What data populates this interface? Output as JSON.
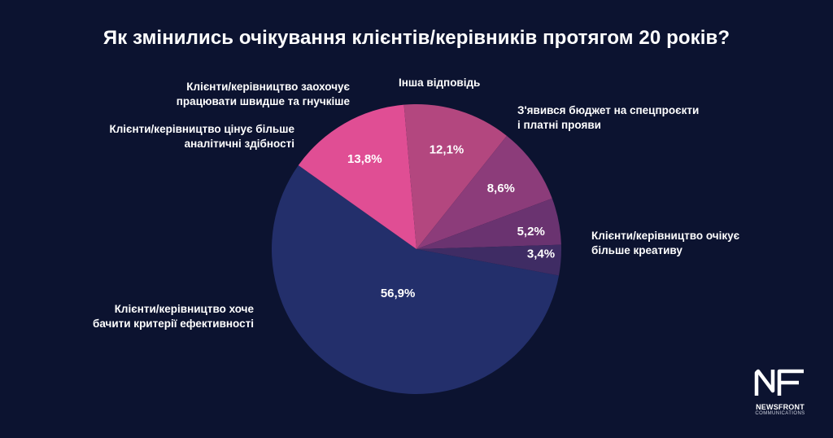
{
  "chart_data": {
    "type": "pie",
    "title": "Як змінились очікування клієнтів/керівників протягом 20 років?",
    "slices": [
      {
        "label": [
          "Клієнти/керівництво хоче",
          "бачити критерії ефективності"
        ],
        "value": 56.9,
        "display": "56,9%",
        "color": "#232f6b"
      },
      {
        "label": [
          "Клієнти/керівництво очікує",
          "більше креативу"
        ],
        "value": 13.8,
        "display": "13,8%",
        "color": "#e04e94"
      },
      {
        "label": [
          "З'явився бюджет на спецпроєкти",
          "і платні прояви"
        ],
        "value": 12.1,
        "display": "12,1%",
        "color": "#b3477f"
      },
      {
        "label": [
          "Інша відповідь"
        ],
        "value": 8.6,
        "display": "8,6%",
        "color": "#8c3c7a"
      },
      {
        "label": [
          "Клієнти/керівництво заохочує",
          "працювати швидше та гнучкіше"
        ],
        "value": 5.2,
        "display": "5,2%",
        "color": "#6a3370"
      },
      {
        "label": [
          "Клієнти/керівництво цінує більше",
          "аналітичні здібності"
        ],
        "value": 3.4,
        "display": "3,4%",
        "color": "#3f2c64"
      }
    ]
  },
  "logo": {
    "mark": "NF",
    "name": "NEWSFRONT",
    "subtitle": "COMMUNICATIONS"
  }
}
